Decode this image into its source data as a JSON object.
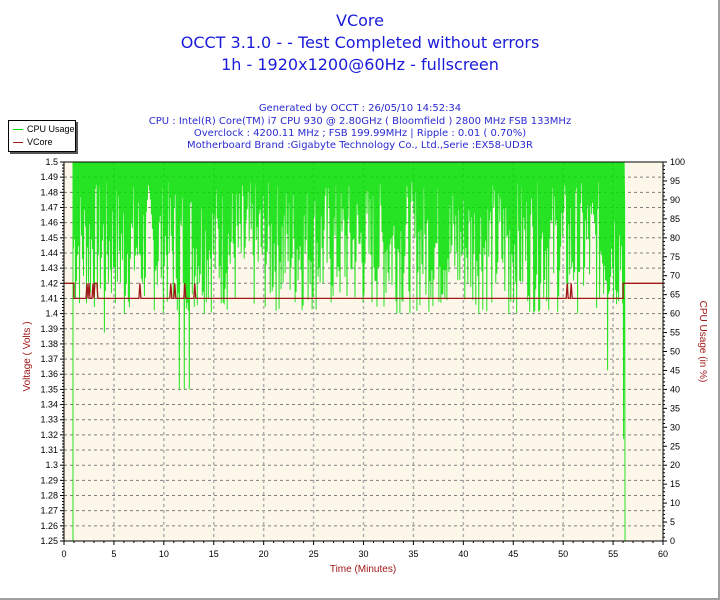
{
  "header": {
    "title": "VCore",
    "subtitle": "OCCT 3.1.0 -  - Test Completed without errors",
    "test_info": "1h - 1920x1200@60Hz - fullscreen",
    "generated": "Generated by OCCT : 26/05/10 14:52:34",
    "cpu": "CPU : Intel(R) Core(TM) i7 CPU 930 @ 2.80GHz ( Bloomfield ) 2800 MHz FSB 133MHz",
    "overclock": "Overclock : 4200.11 MHz ; FSB 199.99MHz | Ripple : 0.01 ( 0.70%)",
    "motherboard": "Motherboard Brand :Gigabyte Technology Co., Ltd.,Serie :EX58-UD3R"
  },
  "legend": {
    "items": [
      {
        "label": "CPU Usage",
        "color": "#00e000"
      },
      {
        "label": "VCore",
        "color": "#a01818"
      }
    ]
  },
  "colors": {
    "plot_background": "#fdf7ea",
    "grid": "#808080",
    "cpu_line": "#00e000",
    "vcore_line": "#a01818",
    "title_text": "#1a1adb",
    "axis_title": "#a01818"
  },
  "chart_data": {
    "type": "line",
    "title": "VCore",
    "xlabel": "Time (Minutes)",
    "ylabel": "Voltage ( Volts )",
    "y2label": "CPU Usage (in %)",
    "xlim": [
      0,
      60
    ],
    "ylim": [
      1.25,
      1.5
    ],
    "y2lim": [
      0,
      100
    ],
    "grid": true,
    "legend_position": "top-left outside",
    "x_ticks": [
      0,
      5,
      10,
      15,
      20,
      25,
      30,
      35,
      40,
      45,
      50,
      55,
      60
    ],
    "y_ticks": [
      1.25,
      1.26,
      1.27,
      1.28,
      1.29,
      1.3,
      1.31,
      1.32,
      1.33,
      1.34,
      1.35,
      1.36,
      1.37,
      1.38,
      1.39,
      1.4,
      1.41,
      1.42,
      1.43,
      1.44,
      1.45,
      1.46,
      1.47,
      1.48,
      1.49,
      1.5
    ],
    "y_tick_labels": [
      "1.25",
      "1.26",
      "1.27",
      "1.28",
      "1.29",
      "1.3",
      "1.31",
      "1.32",
      "1.33",
      "1.34",
      "1.35",
      "1.36",
      "1.37",
      "1.38",
      "1.39",
      "1.4",
      "1.41",
      "1.42",
      "1.43",
      "1.44",
      "1.45",
      "1.46",
      "1.47",
      "1.48",
      "1.49",
      "1.5"
    ],
    "y2_ticks": [
      0,
      5,
      10,
      15,
      20,
      25,
      30,
      35,
      40,
      45,
      50,
      55,
      60,
      65,
      70,
      75,
      80,
      85,
      90,
      95,
      100
    ],
    "series": [
      {
        "name": "VCore",
        "axis": "left",
        "color": "#a01818",
        "x": [
          0,
          1.0,
          1.0,
          2.2,
          2.3,
          2.4,
          2.5,
          2.6,
          2.8,
          2.9,
          3.0,
          3.1,
          3.3,
          3.4,
          3.5,
          7.5,
          7.6,
          7.7,
          10.6,
          10.7,
          10.8,
          11.0,
          11.1,
          11.2,
          12.0,
          12.1,
          12.2,
          13.0,
          13.1,
          13.2,
          50.3,
          50.4,
          50.5,
          50.7,
          50.8,
          50.9,
          56.0,
          56.0,
          60
        ],
        "values": [
          1.42,
          1.42,
          1.41,
          1.41,
          1.42,
          1.41,
          1.42,
          1.41,
          1.41,
          1.42,
          1.41,
          1.42,
          1.42,
          1.41,
          1.41,
          1.41,
          1.42,
          1.41,
          1.41,
          1.42,
          1.41,
          1.41,
          1.42,
          1.41,
          1.41,
          1.42,
          1.41,
          1.41,
          1.42,
          1.41,
          1.41,
          1.42,
          1.41,
          1.41,
          1.42,
          1.41,
          1.41,
          1.42,
          1.42
        ]
      },
      {
        "name": "CPU Usage",
        "axis": "right",
        "color": "#00e000",
        "x_start": 0.9,
        "x_end": 56.2,
        "baseline_before": 0,
        "baseline_after": 0,
        "typical_range": [
          60,
          100
        ],
        "min_dips": [
          {
            "x": 4.0,
            "value": 55
          },
          {
            "x": 6.0,
            "value": 60
          },
          {
            "x": 11.5,
            "value": 40
          },
          {
            "x": 12.0,
            "value": 40
          },
          {
            "x": 12.5,
            "value": 40
          },
          {
            "x": 44.5,
            "value": 60
          },
          {
            "x": 54.4,
            "value": 45
          },
          {
            "x": 56.0,
            "value": 27
          }
        ]
      }
    ]
  }
}
